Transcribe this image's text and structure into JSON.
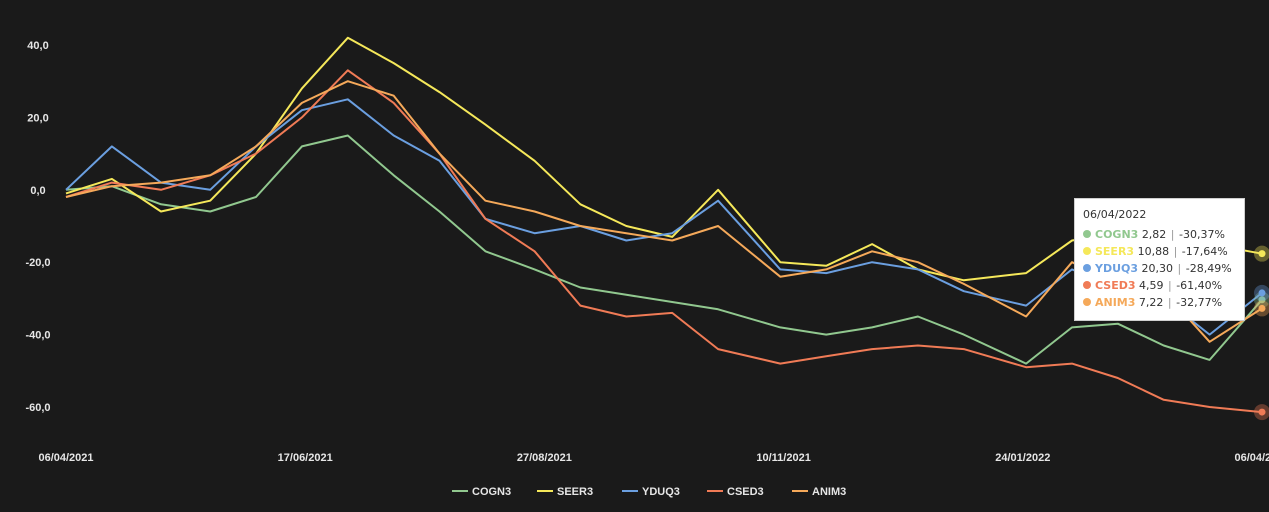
{
  "chart_data": {
    "type": "line",
    "y_ticks": [
      "40,0",
      "20,0",
      "0,0",
      "-20,0",
      "-40,0",
      "-60,0"
    ],
    "y_tick_values": [
      40,
      20,
      0,
      -20,
      -40,
      -60
    ],
    "ylim": [
      -70,
      45
    ],
    "x_ticks": [
      "06/04/2021",
      "17/06/2021",
      "27/08/2021",
      "10/11/2021",
      "24/01/2022",
      "06/04/2022"
    ],
    "x_range": [
      "06/04/2021",
      "06/04/2022"
    ],
    "grid": false,
    "legend_position": "bottom-center",
    "series": [
      {
        "name": "COGN3",
        "color": "#91c88f",
        "x": [
          "06/04/2021",
          "20/04/2021",
          "05/05/2021",
          "20/05/2021",
          "03/06/2021",
          "17/06/2021",
          "01/07/2021",
          "15/07/2021",
          "29/07/2021",
          "12/08/2021",
          "27/08/2021",
          "10/09/2021",
          "24/09/2021",
          "08/10/2021",
          "22/10/2021",
          "10/11/2021",
          "24/11/2021",
          "08/12/2021",
          "22/12/2021",
          "05/01/2022",
          "24/01/2022",
          "07/02/2022",
          "21/02/2022",
          "07/03/2022",
          "21/03/2022",
          "06/04/2022"
        ],
        "y": [
          0,
          1,
          -4,
          -6,
          -2,
          12,
          15,
          4,
          -6,
          -17,
          -22,
          -27,
          -29,
          -31,
          -33,
          -38,
          -40,
          -38,
          -35,
          -40,
          -48,
          -38,
          -37,
          -43,
          -47,
          -30.37
        ]
      },
      {
        "name": "SEER3",
        "color": "#f5e85a",
        "x": [
          "06/04/2021",
          "20/04/2021",
          "05/05/2021",
          "20/05/2021",
          "03/06/2021",
          "17/06/2021",
          "01/07/2021",
          "15/07/2021",
          "29/07/2021",
          "12/08/2021",
          "27/08/2021",
          "10/09/2021",
          "24/09/2021",
          "08/10/2021",
          "22/10/2021",
          "10/11/2021",
          "24/11/2021",
          "08/12/2021",
          "22/12/2021",
          "05/01/2022",
          "24/01/2022",
          "07/02/2022",
          "21/02/2022",
          "07/03/2022",
          "21/03/2022",
          "06/04/2022"
        ],
        "y": [
          -1,
          3,
          -6,
          -3,
          10,
          28,
          42,
          35,
          27,
          18,
          8,
          -4,
          -10,
          -13,
          0,
          -20,
          -21,
          -15,
          -22,
          -25,
          -23,
          -14,
          -12,
          -14,
          -15,
          -17.64
        ]
      },
      {
        "name": "YDUQ3",
        "color": "#6b9fe0",
        "x": [
          "06/04/2021",
          "20/04/2021",
          "05/05/2021",
          "20/05/2021",
          "03/06/2021",
          "17/06/2021",
          "01/07/2021",
          "15/07/2021",
          "29/07/2021",
          "12/08/2021",
          "27/08/2021",
          "10/09/2021",
          "24/09/2021",
          "08/10/2021",
          "22/10/2021",
          "10/11/2021",
          "24/11/2021",
          "08/12/2021",
          "22/12/2021",
          "05/01/2022",
          "24/01/2022",
          "07/02/2022",
          "21/02/2022",
          "07/03/2022",
          "21/03/2022",
          "06/04/2022"
        ],
        "y": [
          0,
          12,
          2,
          0,
          12,
          22,
          25,
          15,
          8,
          -8,
          -12,
          -10,
          -14,
          -12,
          -3,
          -22,
          -23,
          -20,
          -22,
          -28,
          -32,
          -22,
          -27,
          -30,
          -40,
          -28.49
        ]
      },
      {
        "name": "CSED3",
        "color": "#f07b56",
        "x": [
          "06/04/2021",
          "20/04/2021",
          "05/05/2021",
          "20/05/2021",
          "03/06/2021",
          "17/06/2021",
          "01/07/2021",
          "15/07/2021",
          "29/07/2021",
          "12/08/2021",
          "27/08/2021",
          "10/09/2021",
          "24/09/2021",
          "08/10/2021",
          "22/10/2021",
          "10/11/2021",
          "24/11/2021",
          "08/12/2021",
          "22/12/2021",
          "05/01/2022",
          "24/01/2022",
          "07/02/2022",
          "21/02/2022",
          "07/03/2022",
          "21/03/2022",
          "06/04/2022"
        ],
        "y": [
          -2,
          2,
          0,
          4,
          10,
          20,
          33,
          24,
          10,
          -8,
          -17,
          -32,
          -35,
          -34,
          -44,
          -48,
          -46,
          -44,
          -43,
          -44,
          -49,
          -48,
          -52,
          -58,
          -60,
          -61.4
        ]
      },
      {
        "name": "ANIM3",
        "color": "#f5a95a",
        "x": [
          "06/04/2021",
          "20/04/2021",
          "05/05/2021",
          "20/05/2021",
          "03/06/2021",
          "17/06/2021",
          "01/07/2021",
          "15/07/2021",
          "29/07/2021",
          "12/08/2021",
          "27/08/2021",
          "10/09/2021",
          "24/09/2021",
          "08/10/2021",
          "22/10/2021",
          "10/11/2021",
          "24/11/2021",
          "08/12/2021",
          "22/12/2021",
          "05/01/2022",
          "24/01/2022",
          "07/02/2022",
          "21/02/2022",
          "07/03/2022",
          "21/03/2022",
          "06/04/2022"
        ],
        "y": [
          -2,
          1,
          2,
          4,
          12,
          24,
          30,
          26,
          10,
          -3,
          -6,
          -10,
          -12,
          -14,
          -10,
          -24,
          -22,
          -17,
          -20,
          -26,
          -35,
          -20,
          -26,
          -28,
          -42,
          -32.77
        ]
      }
    ]
  },
  "tooltip": {
    "date": "06/04/2022",
    "rows": [
      {
        "name": "COGN3",
        "value": "2,82",
        "change": "-30,37%",
        "color": "#91c88f"
      },
      {
        "name": "SEER3",
        "value": "10,88",
        "change": "-17,64%",
        "color": "#f5e85a"
      },
      {
        "name": "YDUQ3",
        "value": "20,30",
        "change": "-28,49%",
        "color": "#6b9fe0"
      },
      {
        "name": "CSED3",
        "value": "4,59",
        "change": "-61,40%",
        "color": "#f07b56"
      },
      {
        "name": "ANIM3",
        "value": "7,22",
        "change": "-32,77%",
        "color": "#f5a95a"
      }
    ]
  }
}
